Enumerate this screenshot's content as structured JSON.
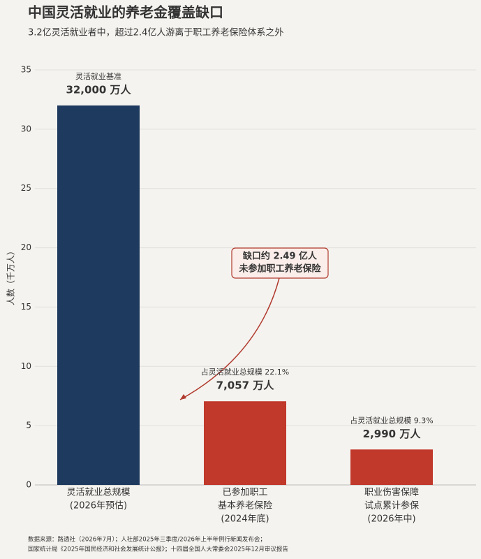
{
  "chart_data": {
    "type": "bar",
    "title": "中国灵活就业的养老金覆盖缺口",
    "subtitle": "3.2亿灵活就业者中，超过2.4亿人游离于职工养老保险体系之外",
    "y_label": "人数（千万人）",
    "categories": [
      [
        "灵活就业总规模",
        "(2026年预估)"
      ],
      [
        "已参加职工",
        "基本养老保险",
        "(2024年底)"
      ],
      [
        "职业伤害保障",
        "试点累计参保",
        "(2026年中)"
      ]
    ],
    "values": [
      32,
      7.057,
      2.99
    ],
    "value_labels": [
      "32,000 万人",
      "7,057 万人",
      "2,990 万人"
    ],
    "notes": [
      "灵活就业基准",
      "占灵活就业总规模 22.1%",
      "占灵活就业总规模 9.3%"
    ],
    "colors": [
      "#1f3a5f",
      "#c0392b",
      "#c0392b"
    ],
    "ylim": [
      0,
      35
    ],
    "yticks": [
      0,
      5,
      10,
      15,
      20,
      25,
      30,
      35
    ],
    "grid": true,
    "annotation": [
      "缺口约 2.49 亿人",
      "未参加职工养老保险"
    ],
    "source": [
      "数据来源：路透社（2026年7月）；人社部2025年三季度/2026年上半年例行新闻发布会；",
      "国家统计局《2025年国民经济和社会发展统计公报》；十四届全国人大常委会2025年12月审议报告"
    ]
  }
}
